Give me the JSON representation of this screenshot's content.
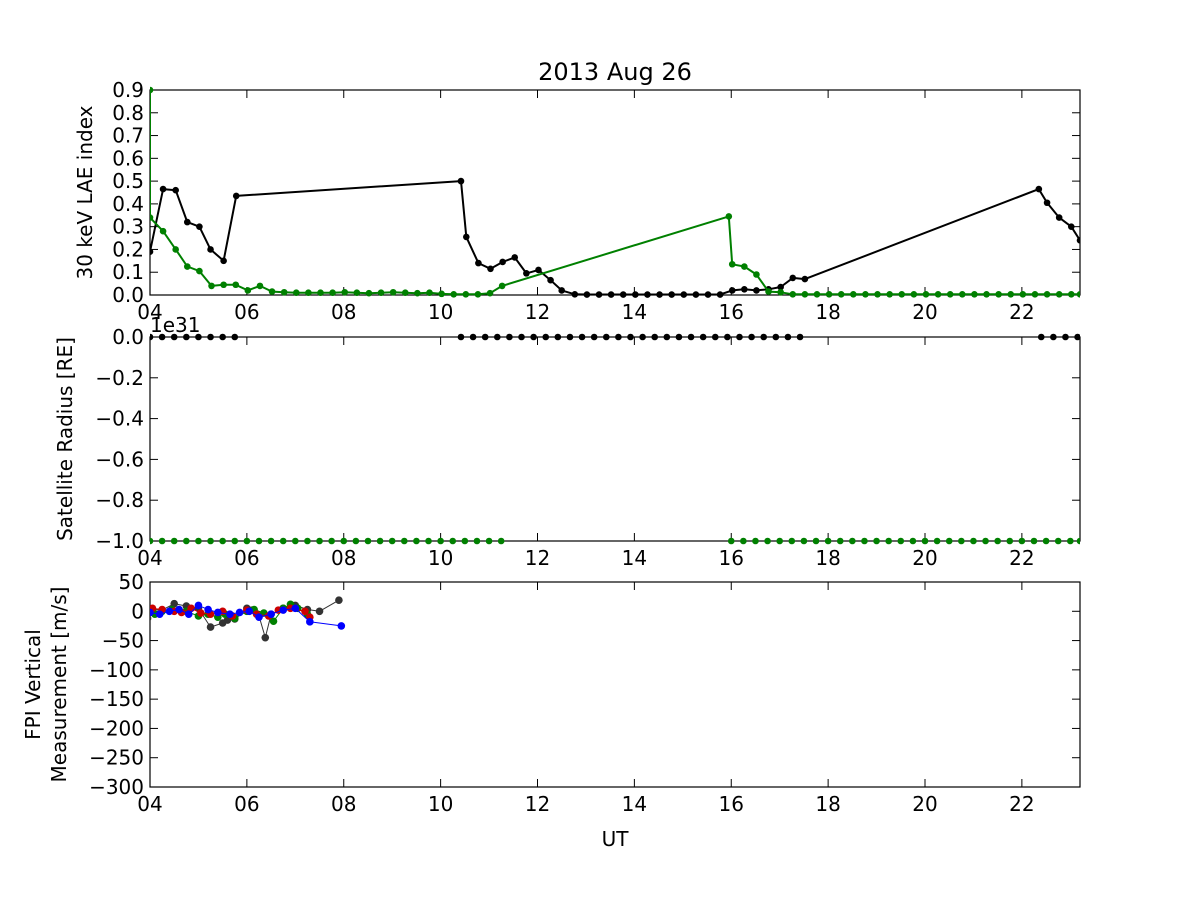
{
  "figure": {
    "title": "2013 Aug 26",
    "xlabel": "UT"
  },
  "chart_data": [
    {
      "type": "line",
      "ylabel": "30 keV LAE index",
      "xlim": [
        4,
        23.2
      ],
      "ylim": [
        0,
        0.9
      ],
      "x_ticks": [
        4,
        6,
        8,
        10,
        12,
        14,
        16,
        18,
        20,
        22
      ],
      "x_tick_labels": [
        "04",
        "06",
        "08",
        "10",
        "12",
        "14",
        "16",
        "18",
        "20",
        "22"
      ],
      "y_ticks": [
        0,
        0.1,
        0.2,
        0.3,
        0.4,
        0.5,
        0.6,
        0.7,
        0.8,
        0.9
      ],
      "y_tick_labels": [
        "0.0",
        "0.1",
        "0.2",
        "0.3",
        "0.4",
        "0.5",
        "0.6",
        "0.7",
        "0.8",
        "0.9"
      ],
      "series": [
        {
          "color": "#000000",
          "points": [
            [
              4.0,
              0.19
            ],
            [
              4.27,
              0.465
            ],
            [
              4.53,
              0.46
            ],
            [
              4.77,
              0.32
            ],
            [
              5.02,
              0.3
            ],
            [
              5.25,
              0.2
            ],
            [
              5.52,
              0.15
            ],
            [
              5.78,
              0.435
            ],
            [
              10.42,
              0.5
            ],
            [
              10.53,
              0.255
            ],
            [
              10.78,
              0.14
            ],
            [
              11.03,
              0.115
            ],
            [
              11.28,
              0.145
            ],
            [
              11.53,
              0.165
            ],
            [
              11.77,
              0.095
            ],
            [
              12.02,
              0.11
            ],
            [
              12.27,
              0.065
            ],
            [
              12.5,
              0.02
            ],
            [
              12.77,
              0.003
            ],
            [
              13.02,
              0.002
            ],
            [
              13.27,
              0.002
            ],
            [
              13.52,
              0.002
            ],
            [
              13.77,
              0.002
            ],
            [
              14.02,
              0.002
            ],
            [
              14.27,
              0.002
            ],
            [
              14.52,
              0.002
            ],
            [
              14.77,
              0.002
            ],
            [
              15.02,
              0.002
            ],
            [
              15.27,
              0.002
            ],
            [
              15.52,
              0.002
            ],
            [
              15.77,
              0.002
            ],
            [
              16.02,
              0.02
            ],
            [
              16.27,
              0.025
            ],
            [
              16.52,
              0.02
            ],
            [
              16.77,
              0.025
            ],
            [
              17.02,
              0.035
            ],
            [
              17.27,
              0.075
            ],
            [
              17.52,
              0.07
            ],
            [
              22.35,
              0.465
            ],
            [
              22.52,
              0.405
            ],
            [
              22.77,
              0.34
            ],
            [
              23.02,
              0.3
            ],
            [
              23.2,
              0.24
            ]
          ]
        },
        {
          "color": "#008000",
          "points": [
            [
              4.0,
              0.9
            ],
            [
              4.0,
              0.34
            ],
            [
              4.27,
              0.28
            ],
            [
              4.53,
              0.2
            ],
            [
              4.77,
              0.125
            ],
            [
              5.02,
              0.105
            ],
            [
              5.27,
              0.04
            ],
            [
              5.52,
              0.045
            ],
            [
              5.77,
              0.045
            ],
            [
              6.02,
              0.02
            ],
            [
              6.27,
              0.04
            ],
            [
              6.52,
              0.015
            ],
            [
              6.77,
              0.012
            ],
            [
              7.02,
              0.01
            ],
            [
              7.27,
              0.01
            ],
            [
              7.52,
              0.01
            ],
            [
              7.77,
              0.01
            ],
            [
              8.02,
              0.012
            ],
            [
              8.27,
              0.01
            ],
            [
              8.52,
              0.008
            ],
            [
              8.77,
              0.01
            ],
            [
              9.02,
              0.012
            ],
            [
              9.27,
              0.01
            ],
            [
              9.52,
              0.008
            ],
            [
              9.77,
              0.01
            ],
            [
              10.02,
              0.005
            ],
            [
              10.27,
              0.003
            ],
            [
              10.52,
              0.003
            ],
            [
              10.77,
              0.003
            ],
            [
              11.02,
              0.008
            ],
            [
              11.27,
              0.04
            ],
            [
              15.95,
              0.345
            ],
            [
              16.02,
              0.135
            ],
            [
              16.27,
              0.125
            ],
            [
              16.52,
              0.09
            ],
            [
              16.77,
              0.015
            ],
            [
              17.02,
              0.012
            ],
            [
              17.27,
              0.003
            ],
            [
              17.52,
              0.003
            ],
            [
              17.77,
              0.003
            ],
            [
              18.02,
              0.003
            ],
            [
              18.27,
              0.003
            ],
            [
              18.52,
              0.003
            ],
            [
              18.77,
              0.003
            ],
            [
              19.02,
              0.003
            ],
            [
              19.27,
              0.003
            ],
            [
              19.52,
              0.003
            ],
            [
              19.77,
              0.003
            ],
            [
              20.02,
              0.003
            ],
            [
              20.27,
              0.003
            ],
            [
              20.52,
              0.003
            ],
            [
              20.77,
              0.003
            ],
            [
              21.02,
              0.003
            ],
            [
              21.27,
              0.003
            ],
            [
              21.52,
              0.003
            ],
            [
              21.77,
              0.003
            ],
            [
              22.02,
              0.003
            ],
            [
              22.27,
              0.003
            ],
            [
              22.52,
              0.003
            ],
            [
              22.77,
              0.003
            ],
            [
              23.02,
              0.003
            ],
            [
              23.2,
              0.003
            ]
          ]
        }
      ]
    },
    {
      "type": "scatter",
      "ylabel": "Satellite Radius [RE]",
      "offset_text": "1e31",
      "xlim": [
        4,
        23.2
      ],
      "ylim": [
        -1.0,
        0.0
      ],
      "x_ticks": [
        4,
        6,
        8,
        10,
        12,
        14,
        16,
        18,
        20,
        22
      ],
      "x_tick_labels": [
        "04",
        "06",
        "08",
        "10",
        "12",
        "14",
        "16",
        "18",
        "20",
        "22"
      ],
      "y_ticks": [
        -1.0,
        -0.8,
        -0.6,
        -0.4,
        -0.2,
        0.0
      ],
      "y_tick_labels": [
        "−1.0",
        "−0.8",
        "−0.6",
        "−0.4",
        "−0.2",
        "0.0"
      ],
      "series": [
        {
          "color": "#000000",
          "y": 0.0,
          "x": [
            4.0,
            4.25,
            4.5,
            4.75,
            5.0,
            5.25,
            5.5,
            5.75,
            10.42,
            10.67,
            10.92,
            11.17,
            11.42,
            11.67,
            11.92,
            12.17,
            12.42,
            12.67,
            12.92,
            13.17,
            13.42,
            13.67,
            13.92,
            14.17,
            14.42,
            14.67,
            14.92,
            15.17,
            15.42,
            15.67,
            15.92,
            16.17,
            16.42,
            16.67,
            16.92,
            17.17,
            17.42,
            22.4,
            22.65,
            22.9,
            23.15
          ]
        },
        {
          "color": "#008000",
          "y": -1.0,
          "x": [
            4.0,
            4.25,
            4.5,
            4.75,
            5.0,
            5.25,
            5.5,
            5.75,
            6.0,
            6.25,
            6.5,
            6.75,
            7.0,
            7.25,
            7.5,
            7.75,
            8.0,
            8.25,
            8.5,
            8.75,
            9.0,
            9.25,
            9.5,
            9.75,
            10.0,
            10.25,
            10.5,
            10.75,
            11.0,
            11.25,
            16.0,
            16.25,
            16.5,
            16.75,
            17.0,
            17.25,
            17.5,
            17.75,
            18.0,
            18.25,
            18.5,
            18.75,
            19.0,
            19.25,
            19.5,
            19.75,
            20.0,
            20.25,
            20.5,
            20.75,
            21.0,
            21.25,
            21.5,
            21.75,
            22.0,
            22.25,
            22.5,
            22.75,
            23.0,
            23.2
          ]
        }
      ]
    },
    {
      "type": "line",
      "ylabel": [
        "FPI Vertical",
        "Measurement [m/s]"
      ],
      "xlim": [
        4,
        23.2
      ],
      "ylim": [
        -300,
        50
      ],
      "x_ticks": [
        4,
        6,
        8,
        10,
        12,
        14,
        16,
        18,
        20,
        22
      ],
      "x_tick_labels": [
        "04",
        "06",
        "08",
        "10",
        "12",
        "14",
        "16",
        "18",
        "20",
        "22"
      ],
      "y_ticks": [
        -300,
        -250,
        -200,
        -150,
        -100,
        -50,
        0,
        50
      ],
      "y_tick_labels": [
        "−300",
        "−250",
        "−200",
        "−150",
        "−100",
        "−50",
        "0",
        "50"
      ],
      "series": [
        {
          "color": "#333333",
          "width": 1,
          "points": [
            [
              3.95,
              -12
            ],
            [
              4.05,
              3
            ],
            [
              4.25,
              2
            ],
            [
              4.5,
              13
            ],
            [
              4.75,
              9
            ],
            [
              5.0,
              5
            ],
            [
              5.25,
              -27
            ],
            [
              5.5,
              -20
            ],
            [
              5.6,
              -15
            ],
            [
              5.75,
              -13
            ],
            [
              6.0,
              5
            ],
            [
              6.1,
              2
            ],
            [
              6.25,
              -8
            ],
            [
              6.38,
              -45
            ],
            [
              6.5,
              -5
            ],
            [
              6.75,
              5
            ],
            [
              7.0,
              10
            ],
            [
              7.25,
              3
            ],
            [
              7.5,
              0
            ],
            [
              7.9,
              19
            ]
          ]
        },
        {
          "color": "#008000",
          "width": 1,
          "points": [
            [
              4.0,
              0
            ],
            [
              4.1,
              -5
            ],
            [
              4.25,
              0
            ],
            [
              4.45,
              3
            ],
            [
              4.75,
              0
            ],
            [
              5.0,
              -8
            ],
            [
              5.2,
              -5
            ],
            [
              5.4,
              -10
            ],
            [
              5.55,
              -5
            ],
            [
              5.75,
              -12
            ],
            [
              6.0,
              0
            ],
            [
              6.15,
              3
            ],
            [
              6.35,
              -3
            ],
            [
              6.55,
              -17
            ],
            [
              6.75,
              5
            ],
            [
              6.9,
              12
            ],
            [
              7.05,
              5
            ],
            [
              7.25,
              -5
            ]
          ]
        },
        {
          "color": "#cc0000",
          "width": 1,
          "points": [
            [
              4.05,
              5
            ],
            [
              4.25,
              3
            ],
            [
              4.5,
              0
            ],
            [
              4.65,
              -2
            ],
            [
              4.85,
              5
            ],
            [
              5.05,
              -3
            ],
            [
              5.25,
              -5
            ],
            [
              5.5,
              0
            ],
            [
              5.7,
              -8
            ],
            [
              6.0,
              2
            ],
            [
              6.2,
              -5
            ],
            [
              6.45,
              -8
            ],
            [
              6.65,
              2
            ],
            [
              6.9,
              5
            ],
            [
              7.2,
              0
            ],
            [
              7.3,
              -10
            ]
          ]
        },
        {
          "color": "#0000ff",
          "width": 1,
          "points": [
            [
              4.0,
              -2
            ],
            [
              4.2,
              -5
            ],
            [
              4.4,
              0
            ],
            [
              4.6,
              3
            ],
            [
              4.8,
              -5
            ],
            [
              5.0,
              10
            ],
            [
              5.2,
              3
            ],
            [
              5.4,
              -2
            ],
            [
              5.65,
              -5
            ],
            [
              5.85,
              -2
            ],
            [
              6.05,
              0
            ],
            [
              6.25,
              -10
            ],
            [
              6.5,
              -5
            ],
            [
              6.75,
              2
            ],
            [
              7.0,
              5
            ],
            [
              7.3,
              -18
            ],
            [
              7.95,
              -25
            ]
          ]
        }
      ]
    }
  ]
}
